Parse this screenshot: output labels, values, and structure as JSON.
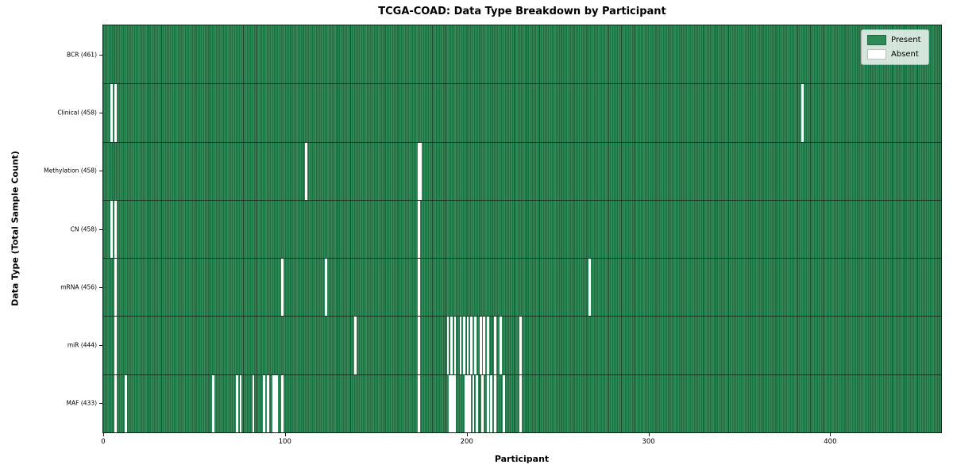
{
  "chart_data": {
    "type": "heatmap",
    "title": "TCGA-COAD: Data Type Breakdown by Participant",
    "xlabel": "Participant",
    "ylabel": "Data Type (Total Sample Count)",
    "n_participants": 461,
    "x_ticks": [
      0,
      100,
      200,
      300,
      400
    ],
    "xlim": [
      0,
      461
    ],
    "grid": false,
    "legend_position": "upper right",
    "legend": [
      {
        "label": "Present",
        "color": "#2e8b57"
      },
      {
        "label": "Absent",
        "color": "#ffffff"
      }
    ],
    "colors": {
      "present": "#2e8b57",
      "absent": "#ffffff",
      "bar_edge": "rgba(0,0,0,0.45)",
      "row_divider": "rgba(0,0,0,0.55)",
      "spine": "#1a1a1a"
    },
    "rows": [
      {
        "name": "BCR",
        "label": "BCR (461)",
        "count": 461,
        "absent": []
      },
      {
        "name": "Clinical",
        "label": "Clinical (458)",
        "count": 458,
        "absent": [
          4,
          6,
          384
        ]
      },
      {
        "name": "Methylation",
        "label": "Methylation (458)",
        "count": 458,
        "absent": [
          111,
          173,
          174
        ]
      },
      {
        "name": "CN",
        "label": "CN (458)",
        "count": 458,
        "absent": [
          4,
          6,
          173
        ]
      },
      {
        "name": "mRNA",
        "label": "mRNA (456)",
        "count": 456,
        "absent": [
          6,
          98,
          122,
          173,
          267
        ]
      },
      {
        "name": "miR",
        "label": "miR (444)",
        "count": 444,
        "absent": [
          6,
          138,
          173,
          189,
          191,
          193,
          196,
          198,
          200,
          202,
          204,
          207,
          209,
          211,
          215,
          218,
          229
        ]
      },
      {
        "name": "MAF",
        "label": "MAF (433)",
        "count": 433,
        "absent": [
          6,
          12,
          60,
          73,
          75,
          82,
          88,
          90,
          93,
          94,
          95,
          98,
          173,
          190,
          191,
          192,
          193,
          199,
          200,
          201,
          203,
          205,
          208,
          211,
          213,
          215,
          220,
          229
        ]
      }
    ]
  }
}
